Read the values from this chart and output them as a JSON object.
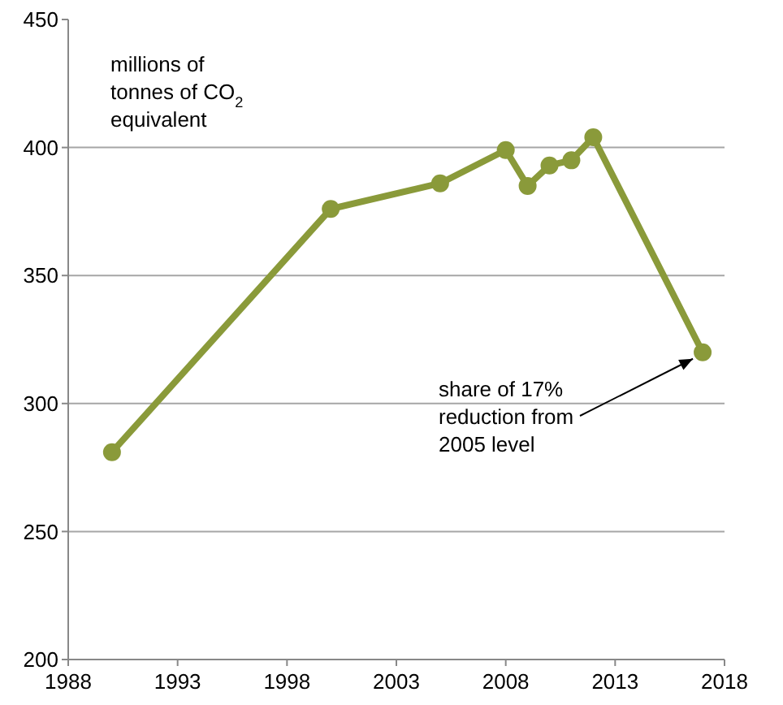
{
  "chart_data": {
    "type": "line",
    "ylabel": "millions of tonnes of CO$_{2}$ equivalent",
    "x": [
      1990,
      2000,
      2005,
      2008,
      2009,
      2010,
      2011,
      2012,
      2017
    ],
    "series": [
      {
        "color": "#8a9a3a",
        "values": [
          281,
          376,
          386,
          399,
          385,
          393,
          395,
          404,
          320
        ]
      }
    ],
    "xlim": [
      1988,
      2018
    ],
    "xticks": [
      1988,
      1993,
      1998,
      2003,
      2008,
      2013,
      2018
    ],
    "ylim": [
      200,
      450
    ],
    "yticks": [
      200,
      250,
      300,
      350,
      400,
      450
    ],
    "grid": "y",
    "marker": "circle",
    "line_style": "solid",
    "annotations": [
      {
        "text": "share of 17% reduction from 2005 level",
        "x": 2017,
        "y": 320
      }
    ]
  }
}
